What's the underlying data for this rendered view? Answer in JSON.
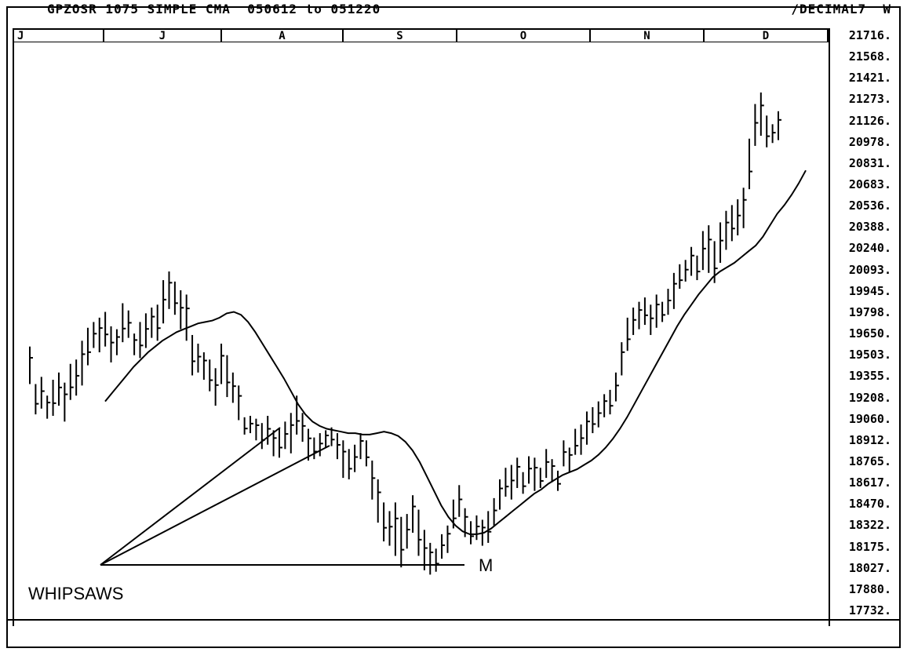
{
  "window": {
    "title_left": "GPZOSR 1075 SIMPLE CMA  050612 to 051220",
    "title_right": "/DECIMAL7  W"
  },
  "chart_data": {
    "type": "line",
    "subtype": "ohlc-bars-with-moving-average",
    "months": [
      "J",
      "J",
      "A",
      "S",
      "O",
      "N",
      "D"
    ],
    "y_ticks": [
      "21716",
      "21568",
      "21421",
      "21273",
      "21126",
      "20978",
      "20831",
      "20683",
      "20536",
      "20388",
      "20240",
      "20093",
      "19945",
      "19798",
      "19650",
      "19503",
      "19355",
      "19208",
      "19060",
      "18912",
      "18765",
      "18617",
      "18470",
      "18322",
      "18175",
      "18027",
      "17880",
      "17732"
    ],
    "ylim": [
      17732,
      21716
    ],
    "grid": false,
    "annotations": [
      {
        "id": "whipsaws",
        "text": "WHIPSAWS"
      },
      {
        "id": "m",
        "text": "M"
      }
    ],
    "series": [
      {
        "kind": "bars",
        "values": [
          [
            19560,
            19300
          ],
          [
            19300,
            19090
          ],
          [
            19350,
            19130
          ],
          [
            19220,
            19060
          ],
          [
            19330,
            19080
          ],
          [
            19380,
            19150
          ],
          [
            19310,
            19040
          ],
          [
            19440,
            19190
          ],
          [
            19470,
            19220
          ],
          [
            19600,
            19290
          ],
          [
            19690,
            19430
          ],
          [
            19730,
            19550
          ],
          [
            19760,
            19520
          ],
          [
            19800,
            19560
          ],
          [
            19700,
            19450
          ],
          [
            19680,
            19500
          ],
          [
            19860,
            19590
          ],
          [
            19810,
            19620
          ],
          [
            19650,
            19500
          ],
          [
            19730,
            19480
          ],
          [
            19790,
            19550
          ],
          [
            19830,
            19620
          ],
          [
            19850,
            19600
          ],
          [
            20020,
            19720
          ],
          [
            20080,
            19820
          ],
          [
            20010,
            19780
          ],
          [
            19950,
            19680
          ],
          [
            19920,
            19600
          ],
          [
            19640,
            19360
          ],
          [
            19580,
            19380
          ],
          [
            19520,
            19330
          ],
          [
            19470,
            19250
          ],
          [
            19410,
            19150
          ],
          [
            19580,
            19300
          ],
          [
            19500,
            19210
          ],
          [
            19380,
            19170
          ],
          [
            19290,
            19050
          ],
          [
            19070,
            18950
          ],
          [
            19080,
            18960
          ],
          [
            19060,
            18910
          ],
          [
            19030,
            18850
          ],
          [
            19080,
            18880
          ],
          [
            18980,
            18800
          ],
          [
            18990,
            18790
          ],
          [
            19040,
            18850
          ],
          [
            19100,
            18820
          ],
          [
            19220,
            18950
          ],
          [
            19100,
            18900
          ],
          [
            18990,
            18770
          ],
          [
            18930,
            18780
          ],
          [
            18960,
            18800
          ],
          [
            18980,
            18860
          ],
          [
            19000,
            18870
          ],
          [
            18960,
            18780
          ],
          [
            18910,
            18650
          ],
          [
            18850,
            18640
          ],
          [
            18880,
            18690
          ],
          [
            18960,
            18780
          ],
          [
            18910,
            18730
          ],
          [
            18770,
            18500
          ],
          [
            18640,
            18340
          ],
          [
            18480,
            18210
          ],
          [
            18420,
            18180
          ],
          [
            18480,
            18110
          ],
          [
            18380,
            18030
          ],
          [
            18400,
            18160
          ],
          [
            18530,
            18270
          ],
          [
            18430,
            18110
          ],
          [
            18290,
            18010
          ],
          [
            18200,
            17980
          ],
          [
            18160,
            18000
          ],
          [
            18260,
            18090
          ],
          [
            18320,
            18130
          ],
          [
            18500,
            18300
          ],
          [
            18600,
            18380
          ],
          [
            18440,
            18240
          ],
          [
            18350,
            18190
          ],
          [
            18390,
            18220
          ],
          [
            18360,
            18180
          ],
          [
            18420,
            18200
          ],
          [
            18510,
            18320
          ],
          [
            18640,
            18430
          ],
          [
            18720,
            18520
          ],
          [
            18740,
            18500
          ],
          [
            18790,
            18580
          ],
          [
            18690,
            18540
          ],
          [
            18800,
            18610
          ],
          [
            18790,
            18560
          ],
          [
            18720,
            18580
          ],
          [
            18850,
            18650
          ],
          [
            18780,
            18620
          ],
          [
            18700,
            18560
          ],
          [
            18910,
            18730
          ],
          [
            18860,
            18690
          ],
          [
            18990,
            18810
          ],
          [
            19020,
            18810
          ],
          [
            19110,
            18880
          ],
          [
            19140,
            18960
          ],
          [
            19180,
            19000
          ],
          [
            19230,
            19070
          ],
          [
            19260,
            19090
          ],
          [
            19380,
            19180
          ],
          [
            19590,
            19360
          ],
          [
            19760,
            19530
          ],
          [
            19830,
            19640
          ],
          [
            19870,
            19680
          ],
          [
            19900,
            19710
          ],
          [
            19850,
            19640
          ],
          [
            19920,
            19690
          ],
          [
            19870,
            19730
          ],
          [
            19960,
            19780
          ],
          [
            20070,
            19820
          ],
          [
            20130,
            19960
          ],
          [
            20160,
            20010
          ],
          [
            20250,
            20050
          ],
          [
            20190,
            20020
          ],
          [
            20360,
            20090
          ],
          [
            20400,
            20070
          ],
          [
            20290,
            20000
          ],
          [
            20420,
            20140
          ],
          [
            20500,
            20230
          ],
          [
            20540,
            20290
          ],
          [
            20580,
            20330
          ],
          [
            20660,
            20380
          ],
          [
            21000,
            20650
          ],
          [
            21240,
            20950
          ],
          [
            21320,
            21020
          ],
          [
            21160,
            20940
          ],
          [
            21100,
            20970
          ],
          [
            21190,
            20990
          ]
        ]
      },
      {
        "kind": "line",
        "values": [
          19180,
          19240,
          19300,
          19360,
          19420,
          19470,
          19520,
          19560,
          19600,
          19630,
          19660,
          19680,
          19700,
          19720,
          19730,
          19740,
          19760,
          19790,
          19800,
          19780,
          19730,
          19660,
          19580,
          19500,
          19420,
          19340,
          19250,
          19160,
          19090,
          19040,
          19010,
          18990,
          18980,
          18970,
          18960,
          18960,
          18950,
          18950,
          18960,
          18970,
          18960,
          18940,
          18900,
          18840,
          18760,
          18660,
          18560,
          18460,
          18380,
          18320,
          18280,
          18260,
          18260,
          18270,
          18300,
          18340,
          18380,
          18420,
          18460,
          18500,
          18540,
          18570,
          18610,
          18640,
          18670,
          18690,
          18710,
          18740,
          18770,
          18810,
          18860,
          18920,
          18990,
          19070,
          19160,
          19250,
          19340,
          19430,
          19520,
          19610,
          19700,
          19780,
          19850,
          19920,
          19980,
          20040,
          20080,
          20110,
          20140,
          20180,
          20220,
          20260,
          20320,
          20400,
          20480,
          20540,
          20610,
          20690,
          20780
        ]
      }
    ]
  }
}
